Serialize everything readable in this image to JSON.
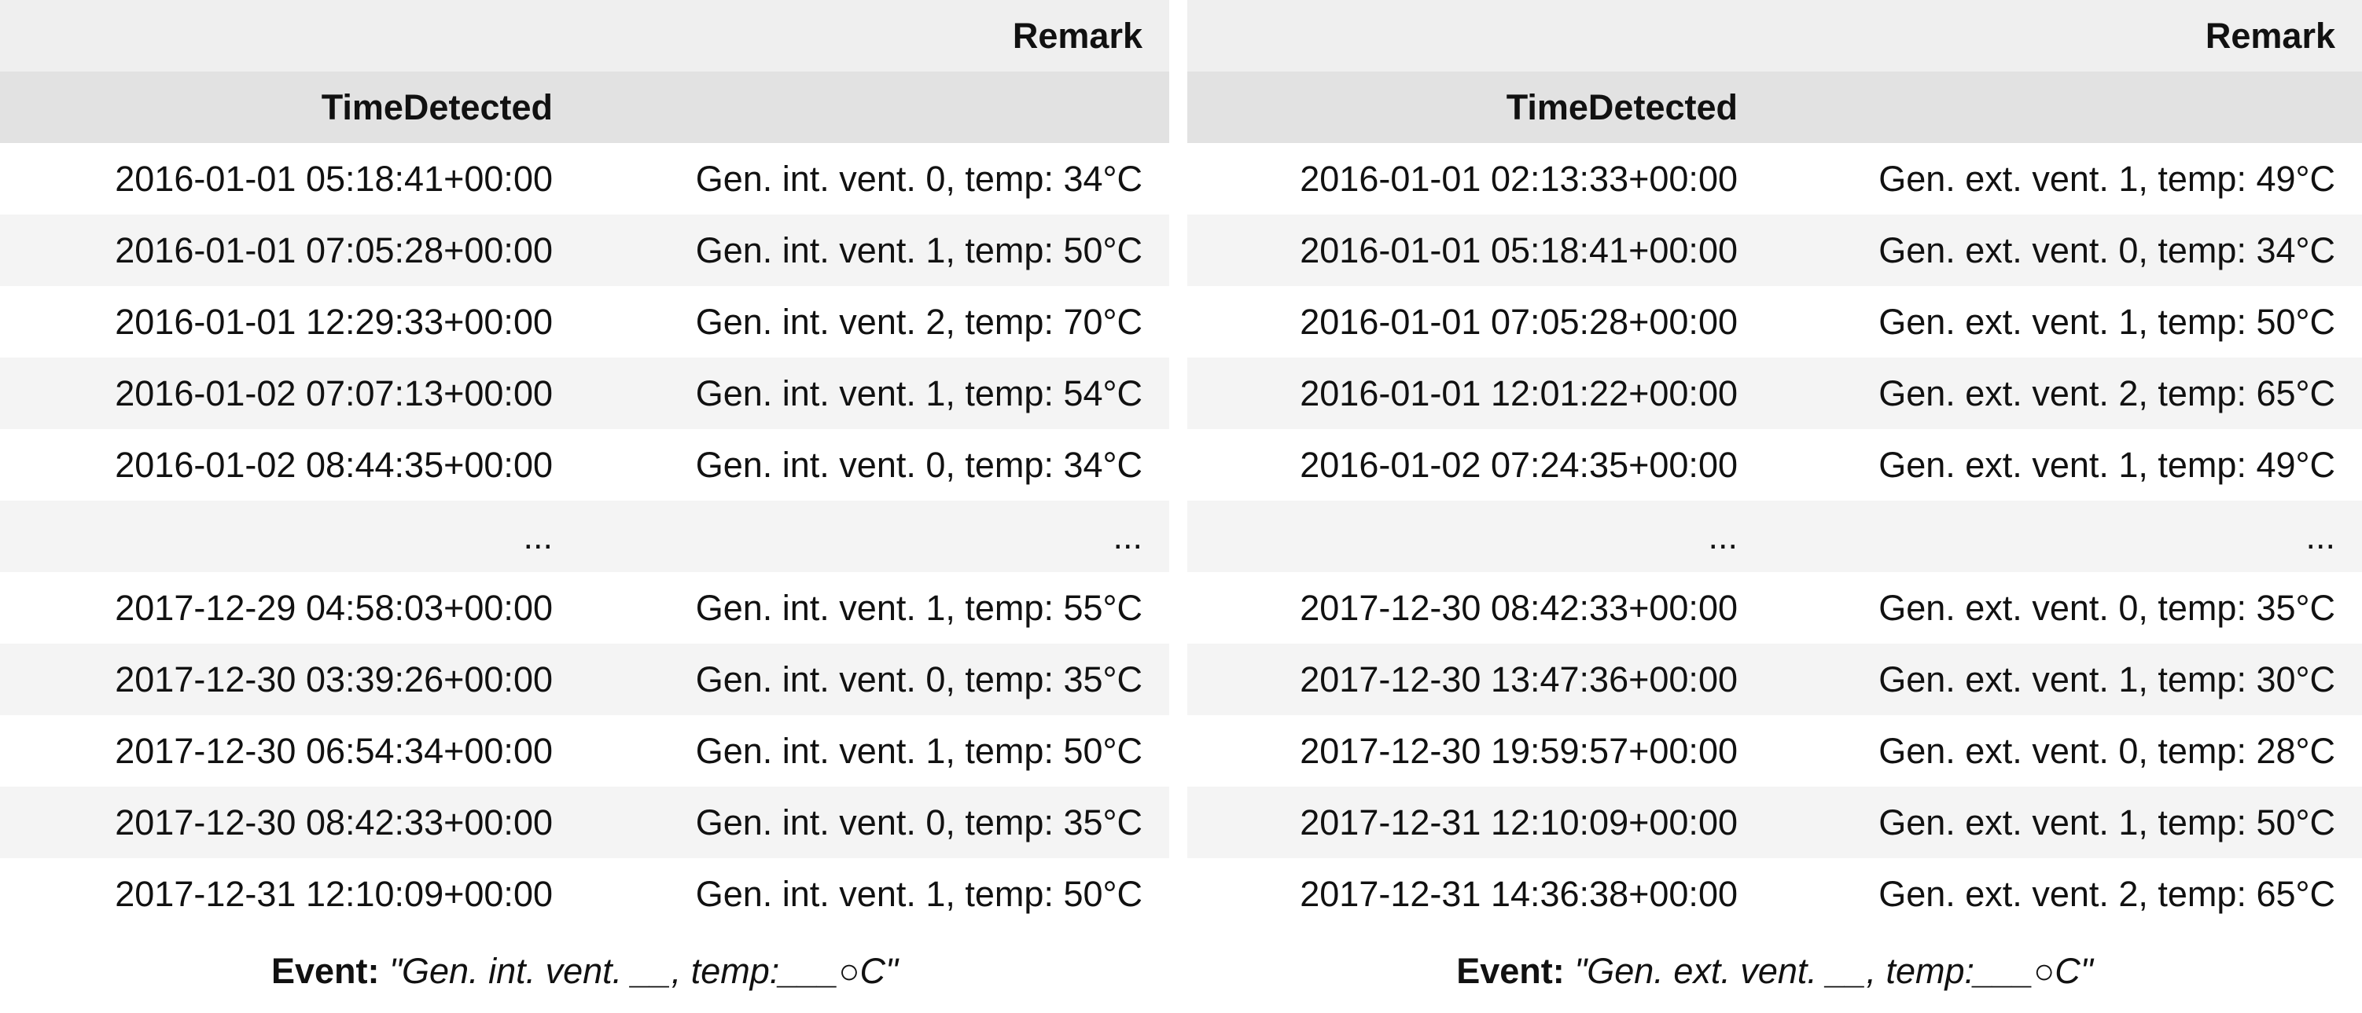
{
  "tables": [
    {
      "header": {
        "column": "Remark",
        "index": "TimeDetected"
      },
      "rows": [
        [
          "2016-01-01 05:18:41+00:00",
          "Gen. int. vent. 0, temp: 34°C"
        ],
        [
          "2016-01-01 07:05:28+00:00",
          "Gen. int. vent. 1, temp: 50°C"
        ],
        [
          "2016-01-01 12:29:33+00:00",
          "Gen. int. vent. 2, temp: 70°C"
        ],
        [
          "2016-01-02 07:07:13+00:00",
          "Gen. int. vent. 1, temp: 54°C"
        ],
        [
          "2016-01-02 08:44:35+00:00",
          "Gen. int. vent. 0, temp: 34°C"
        ],
        [
          "...",
          "..."
        ],
        [
          "2017-12-29 04:58:03+00:00",
          "Gen. int. vent. 1, temp: 55°C"
        ],
        [
          "2017-12-30 03:39:26+00:00",
          "Gen. int. vent. 0, temp: 35°C"
        ],
        [
          "2017-12-30 06:54:34+00:00",
          "Gen. int. vent. 1, temp: 50°C"
        ],
        [
          "2017-12-30 08:42:33+00:00",
          "Gen. int. vent. 0, temp: 35°C"
        ],
        [
          "2017-12-31 12:10:09+00:00",
          "Gen. int. vent. 1, temp: 50°C"
        ]
      ],
      "caption": {
        "label": "Event:",
        "pattern": "\"Gen. int. vent. __, temp:___○C\""
      }
    },
    {
      "header": {
        "column": "Remark",
        "index": "TimeDetected"
      },
      "rows": [
        [
          "2016-01-01 02:13:33+00:00",
          "Gen. ext. vent. 1, temp: 49°C"
        ],
        [
          "2016-01-01 05:18:41+00:00",
          "Gen. ext. vent. 0, temp: 34°C"
        ],
        [
          "2016-01-01 07:05:28+00:00",
          "Gen. ext. vent. 1, temp: 50°C"
        ],
        [
          "2016-01-01 12:01:22+00:00",
          "Gen. ext. vent. 2, temp: 65°C"
        ],
        [
          "2016-01-02 07:24:35+00:00",
          "Gen. ext. vent. 1, temp: 49°C"
        ],
        [
          "...",
          "..."
        ],
        [
          "2017-12-30 08:42:33+00:00",
          "Gen. ext. vent. 0, temp: 35°C"
        ],
        [
          "2017-12-30 13:47:36+00:00",
          "Gen. ext. vent. 1, temp: 30°C"
        ],
        [
          "2017-12-30 19:59:57+00:00",
          "Gen. ext. vent. 0, temp: 28°C"
        ],
        [
          "2017-12-31 12:10:09+00:00",
          "Gen. ext. vent. 1, temp: 50°C"
        ],
        [
          "2017-12-31 14:36:38+00:00",
          "Gen. ext. vent. 2, temp: 65°C"
        ]
      ],
      "caption": {
        "label": "Event:",
        "pattern": "\"Gen. ext. vent. __, temp:___○C\""
      }
    }
  ]
}
